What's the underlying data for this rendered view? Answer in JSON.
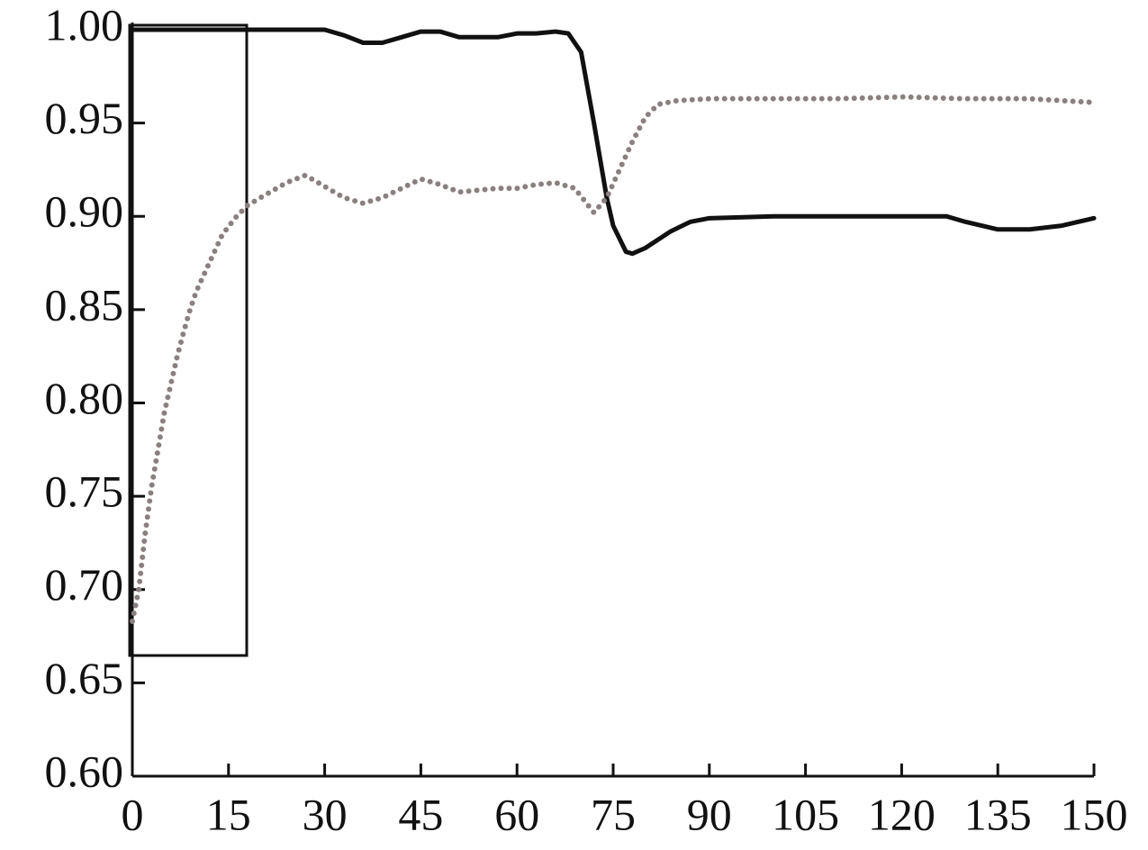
{
  "chart_data": {
    "type": "line",
    "xlim": [
      0,
      150
    ],
    "xticks": [
      0,
      15,
      30,
      45,
      60,
      75,
      90,
      105,
      120,
      135,
      150
    ],
    "ylim": [
      0.6,
      1.0
    ],
    "yticks": [
      {
        "value": 0.6,
        "label": "0.60"
      },
      {
        "value": 0.65,
        "label": "0.65"
      },
      {
        "value": 0.7,
        "label": "0.70"
      },
      {
        "value": 0.75,
        "label": "0.75"
      },
      {
        "value": 0.8,
        "label": "0.80"
      },
      {
        "value": 0.85,
        "label": "0.85"
      },
      {
        "value": 0.9,
        "label": "0.90"
      },
      {
        "value": 0.95,
        "label": "0.95"
      },
      {
        "value": 1.0,
        "label": "1.00"
      }
    ],
    "series": [
      {
        "color": "#111111",
        "style": "solid",
        "x": [
          0,
          10,
          20,
          30,
          33,
          36,
          39,
          42,
          45,
          48,
          51,
          54,
          57,
          60,
          63,
          66,
          68,
          70,
          72,
          74,
          75,
          77,
          78,
          80,
          84,
          87,
          90,
          100,
          110,
          120,
          127,
          130,
          135,
          140,
          145,
          150
        ],
        "values": [
          1.0,
          1.0,
          1.0,
          1.0,
          0.997,
          0.993,
          0.993,
          0.996,
          0.999,
          0.999,
          0.996,
          0.996,
          0.996,
          0.998,
          0.998,
          0.999,
          0.998,
          0.988,
          0.95,
          0.91,
          0.895,
          0.881,
          0.88,
          0.883,
          0.892,
          0.897,
          0.899,
          0.9,
          0.9,
          0.9,
          0.9,
          0.897,
          0.893,
          0.893,
          0.895,
          0.899
        ]
      },
      {
        "color": "#8a8080",
        "style": "dotted",
        "x": [
          0,
          1,
          2,
          3,
          4,
          5,
          6,
          7,
          8,
          9,
          10,
          12,
          14,
          16,
          18,
          21,
          24,
          27,
          30,
          33,
          36,
          39,
          42,
          45,
          48,
          51,
          54,
          57,
          60,
          63,
          66,
          69,
          72,
          74,
          76,
          78,
          80,
          82,
          85,
          90,
          100,
          110,
          120,
          130,
          140,
          150
        ],
        "values": [
          0.683,
          0.7,
          0.73,
          0.755,
          0.775,
          0.795,
          0.81,
          0.825,
          0.838,
          0.85,
          0.86,
          0.875,
          0.89,
          0.899,
          0.906,
          0.912,
          0.918,
          0.922,
          0.916,
          0.91,
          0.907,
          0.91,
          0.915,
          0.92,
          0.917,
          0.913,
          0.914,
          0.915,
          0.915,
          0.917,
          0.918,
          0.915,
          0.902,
          0.91,
          0.925,
          0.94,
          0.953,
          0.96,
          0.962,
          0.963,
          0.963,
          0.963,
          0.964,
          0.963,
          0.963,
          0.961
        ]
      }
    ]
  }
}
